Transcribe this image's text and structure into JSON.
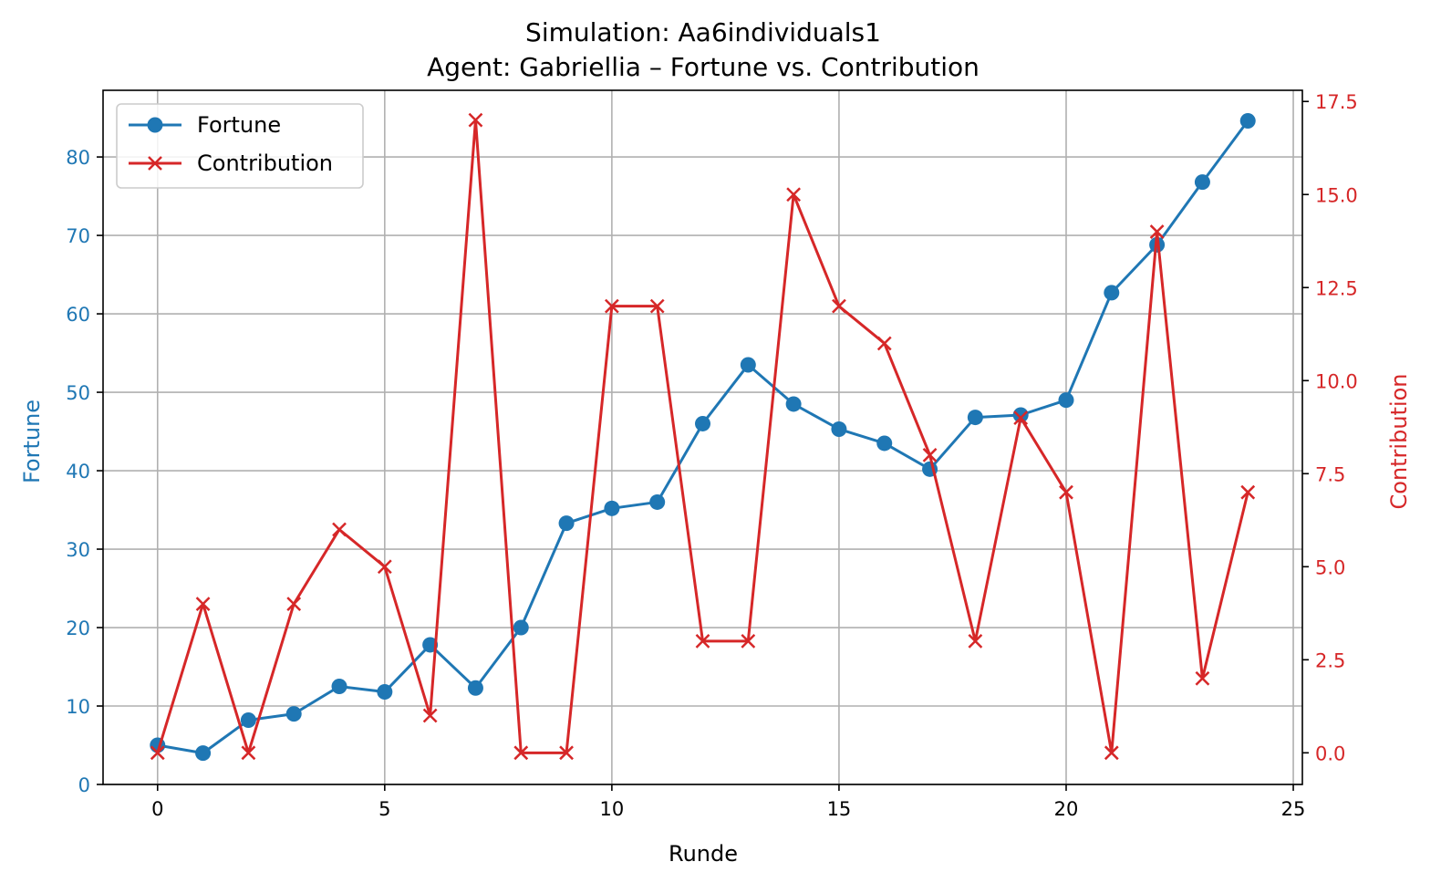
{
  "chart_data": {
    "type": "line",
    "title": "Simulation: Aa6individuals1",
    "subtitle": "Agent: Gabriellia – Fortune vs. Contribution",
    "xlabel": "Runde",
    "ylabel_left": "Fortune",
    "ylabel_right": "Contribution",
    "xlim": [
      -1.2,
      25.2
    ],
    "ylim_left": [
      0,
      88.5
    ],
    "ylim_right": [
      -0.85,
      17.8
    ],
    "xticks": [
      0,
      5,
      10,
      15,
      20,
      25
    ],
    "yticks_left": [
      0,
      10,
      20,
      30,
      40,
      50,
      60,
      70,
      80
    ],
    "yticks_right": [
      "0.0",
      "2.5",
      "5.0",
      "7.5",
      "10.0",
      "12.5",
      "15.0",
      "17.5"
    ],
    "grid": true,
    "legend_position": "top-left",
    "x": [
      0,
      1,
      2,
      3,
      4,
      5,
      6,
      7,
      8,
      9,
      10,
      11,
      12,
      13,
      14,
      15,
      16,
      17,
      18,
      19,
      20,
      21,
      22,
      23,
      24
    ],
    "series": [
      {
        "name": "Fortune",
        "axis": "left",
        "marker": "circle",
        "color": "#1f77b4",
        "values": [
          5.0,
          4.0,
          8.2,
          9.0,
          12.5,
          11.8,
          17.8,
          12.3,
          20.0,
          33.3,
          35.2,
          36.0,
          46.0,
          53.5,
          48.5,
          45.3,
          43.5,
          40.2,
          46.8,
          47.1,
          49.0,
          62.7,
          68.8,
          76.8,
          84.6
        ]
      },
      {
        "name": "Contribution",
        "axis": "right",
        "marker": "x",
        "color": "#d62728",
        "values": [
          0,
          4,
          0,
          4,
          6,
          5,
          1,
          17,
          0,
          0,
          12,
          12,
          3,
          3,
          15,
          12,
          11,
          8,
          3,
          9,
          7,
          0,
          14,
          2,
          7
        ]
      }
    ]
  }
}
